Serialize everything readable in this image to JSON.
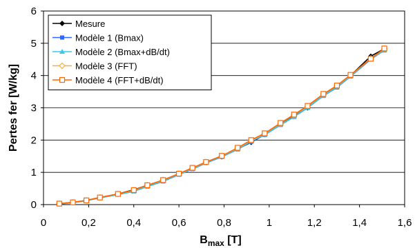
{
  "chart_data": {
    "type": "line",
    "xlabel": {
      "main": "B",
      "sub": "max",
      "unit": " [T]"
    },
    "ylabel": "Pertes fer  [W/kg]",
    "xlim": [
      0,
      1.6
    ],
    "ylim": [
      0,
      6
    ],
    "xticks": [
      0,
      0.2,
      0.4,
      0.6,
      0.8,
      1.0,
      1.2,
      1.4,
      1.6
    ],
    "xtick_labels": [
      "0",
      "0,2",
      "0,4",
      "0,6",
      "0,8",
      "1",
      "1,2",
      "1,4",
      "1,6"
    ],
    "yticks": [
      0,
      1,
      2,
      3,
      4,
      5,
      6
    ],
    "ytick_labels": [
      "0",
      "1",
      "2",
      "3",
      "4",
      "5",
      "6"
    ],
    "grid": "horizontal",
    "legend_position": "top-left",
    "x": [
      0.07,
      0.13,
      0.19,
      0.25,
      0.33,
      0.4,
      0.46,
      0.53,
      0.6,
      0.66,
      0.72,
      0.79,
      0.86,
      0.92,
      0.98,
      1.05,
      1.11,
      1.17,
      1.24,
      1.3,
      1.36,
      1.45,
      1.51
    ],
    "series": [
      {
        "name": "Mesure",
        "color": "#000000",
        "marker": "diamond",
        "values": [
          0.03,
          0.07,
          0.13,
          0.22,
          0.33,
          0.46,
          0.6,
          0.75,
          0.95,
          1.13,
          1.3,
          1.48,
          1.73,
          1.93,
          2.17,
          2.5,
          2.75,
          3.0,
          3.4,
          3.65,
          4.0,
          4.6,
          4.83
        ]
      },
      {
        "name": "Modèle 1 (Bmax)",
        "color": "#3366ff",
        "marker": "square",
        "values": [
          0.02,
          0.06,
          0.12,
          0.21,
          0.31,
          0.41,
          0.56,
          0.72,
          0.93,
          1.1,
          1.29,
          1.48,
          1.71,
          1.95,
          2.16,
          2.47,
          2.72,
          3.0,
          3.37,
          3.63,
          3.97,
          4.5,
          4.78
        ]
      },
      {
        "name": "Modèle 2 (Bmax+dB/dt)",
        "color": "#33ccee",
        "marker": "triangle",
        "values": [
          0.02,
          0.06,
          0.12,
          0.21,
          0.31,
          0.41,
          0.57,
          0.73,
          0.94,
          1.11,
          1.3,
          1.49,
          1.72,
          1.96,
          2.17,
          2.48,
          2.73,
          3.01,
          3.38,
          3.64,
          3.98,
          4.51,
          4.79
        ]
      },
      {
        "name": "Modèle 3 (FFT)",
        "color": "#ffaa33",
        "marker": "diamond-open",
        "values": [
          0.03,
          0.07,
          0.13,
          0.22,
          0.33,
          0.44,
          0.6,
          0.76,
          0.96,
          1.13,
          1.32,
          1.51,
          1.75,
          1.99,
          2.2,
          2.52,
          2.78,
          3.05,
          3.42,
          3.68,
          4.01,
          4.53,
          4.83
        ]
      },
      {
        "name": "Modèle 4 (FFT+dB/dt)",
        "color": "#ff6600",
        "marker": "square-open",
        "values": [
          0.03,
          0.07,
          0.13,
          0.22,
          0.33,
          0.45,
          0.6,
          0.76,
          0.96,
          1.14,
          1.32,
          1.51,
          1.76,
          2.0,
          2.21,
          2.53,
          2.79,
          3.06,
          3.43,
          3.69,
          4.02,
          4.52,
          4.84
        ]
      }
    ]
  }
}
